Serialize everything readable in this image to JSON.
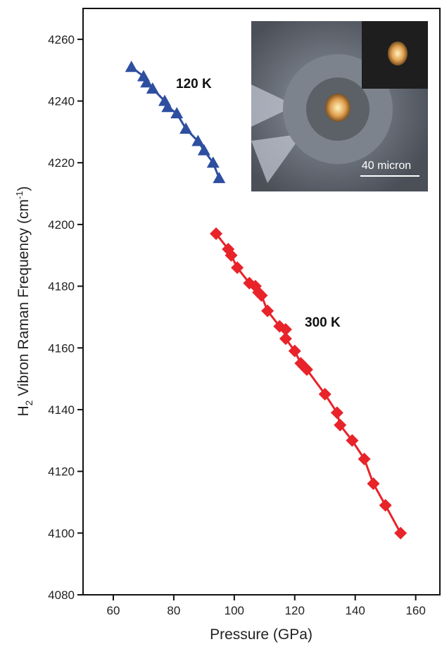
{
  "chart_data": {
    "type": "scatter",
    "x_label": "Pressure (GPa)",
    "y_label": [
      "H",
      "2",
      " Vibron Raman Frequency (cm",
      "-1",
      ")"
    ],
    "xlim": [
      50,
      168
    ],
    "xticks": [
      60,
      80,
      100,
      120,
      140,
      160
    ],
    "ylim": [
      4080,
      4270
    ],
    "yticks": [
      4080,
      4100,
      4120,
      4140,
      4160,
      4180,
      4200,
      4220,
      4240,
      4260
    ],
    "annotations": [
      "120 K",
      "300 K",
      "40 micron"
    ],
    "series": [
      {
        "color": "#2e4fa0",
        "marker": "triangle",
        "x": [
          66,
          70,
          71,
          73,
          77,
          78,
          81,
          84,
          88,
          90,
          93,
          95
        ],
        "values": [
          4251,
          4248,
          4246,
          4244,
          4240,
          4238,
          4236,
          4231,
          4227,
          4224,
          4220,
          4215
        ]
      },
      {
        "color": "#e8232a",
        "marker": "diamond",
        "x": [
          94,
          98,
          99,
          101,
          105,
          107,
          108,
          109,
          111,
          115,
          117,
          117,
          120,
          122,
          123,
          124,
          130,
          134,
          135,
          139,
          143,
          146,
          150,
          155
        ],
        "values": [
          4197,
          4192,
          4190,
          4186,
          4181,
          4180,
          4178,
          4177,
          4172,
          4167,
          4166,
          4163,
          4159,
          4155,
          4154,
          4153,
          4145,
          4139,
          4135,
          4130,
          4124,
          4116,
          4109,
          4100
        ]
      }
    ]
  }
}
